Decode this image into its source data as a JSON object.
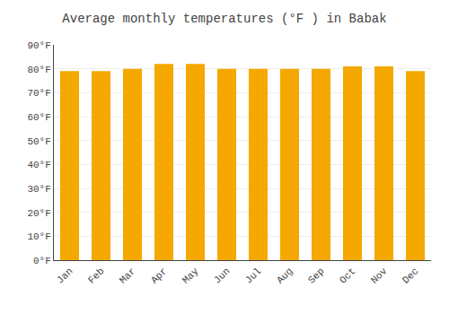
{
  "chart_data": {
    "type": "bar",
    "title": "Average monthly temperatures (°F ) in Babak",
    "categories": [
      "Jan",
      "Feb",
      "Mar",
      "Apr",
      "May",
      "Jun",
      "Jul",
      "Aug",
      "Sep",
      "Oct",
      "Nov",
      "Dec"
    ],
    "values": [
      79,
      79,
      80,
      82,
      82,
      80,
      80,
      80,
      80,
      81,
      81,
      79
    ],
    "color": "#F5A800",
    "ylim": [
      0,
      90
    ],
    "yticks": [
      {
        "value": 0,
        "label": "0°F"
      },
      {
        "value": 10,
        "label": "10°F"
      },
      {
        "value": 20,
        "label": "20°F"
      },
      {
        "value": 30,
        "label": "30°F"
      },
      {
        "value": 40,
        "label": "40°F"
      },
      {
        "value": 50,
        "label": "50°F"
      },
      {
        "value": 60,
        "label": "60°F"
      },
      {
        "value": 70,
        "label": "70°F"
      },
      {
        "value": 80,
        "label": "80°F"
      },
      {
        "value": 90,
        "label": "90°F"
      }
    ],
    "grid": true
  }
}
